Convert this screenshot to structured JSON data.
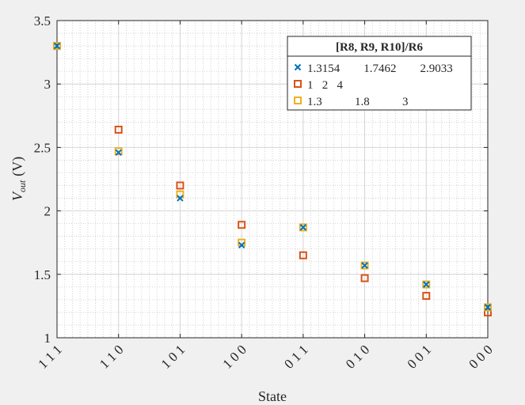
{
  "chart_data": {
    "type": "scatter",
    "xlabel": "State",
    "ylabel_main": "V",
    "ylabel_sub": "out",
    "ylabel_unit": "(V)",
    "categories": [
      "1 1 1",
      "1 1 0",
      "1 0 1",
      "1 0 0",
      "0 1 1",
      "0 1 0",
      "0 0 1",
      "0 0 0"
    ],
    "ylim": [
      1,
      3.5
    ],
    "yticks": [
      1,
      1.5,
      2,
      2.5,
      3,
      3.5
    ],
    "ytick_labels": [
      "1",
      "1.5",
      "2",
      "2.5",
      "3",
      "3.5"
    ],
    "grid": true,
    "minor_grid": true,
    "legend_position": "top-right",
    "legend_title": "[R8, R9, R10]/R6",
    "series": [
      {
        "name": "1.3154        1.7462        2.9033",
        "marker": "x",
        "color": "#0072bd",
        "values": [
          3.3,
          2.46,
          2.1,
          1.73,
          1.87,
          1.57,
          1.42,
          1.24
        ]
      },
      {
        "name": "1   2   4",
        "marker": "square",
        "color": "#d95319",
        "values": [
          3.3,
          2.64,
          2.2,
          1.89,
          1.65,
          1.47,
          1.33,
          1.2
        ]
      },
      {
        "name": "1.3           1.8           3",
        "marker": "square",
        "color": "#edb120",
        "values": [
          3.3,
          2.47,
          2.13,
          1.75,
          1.87,
          1.57,
          1.42,
          1.24
        ]
      }
    ]
  }
}
